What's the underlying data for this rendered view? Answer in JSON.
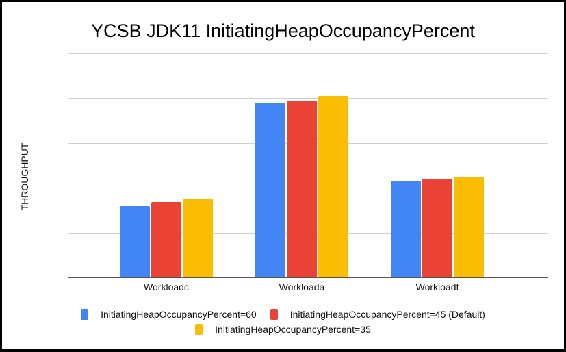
{
  "chart_data": {
    "type": "bar",
    "title": "YCSB JDK11 InitiatingHeapOccupancyPercent",
    "xlabel": "",
    "ylabel": "THROUGHPUT",
    "ylim": [
      0,
      5
    ],
    "y_tick_labels_visible": false,
    "grid": true,
    "gridlines": [
      1,
      2,
      3,
      4,
      5
    ],
    "legend_position": "bottom",
    "categories": [
      "Workloadc",
      "Workloada",
      "Workloadf"
    ],
    "series": [
      {
        "name": "InitiatingHeapOccupancyPercent=60",
        "color": "#4285F4",
        "values": [
          1.59,
          3.9,
          2.16
        ]
      },
      {
        "name": "InitiatingHeapOccupancyPercent=45 (Default)",
        "color": "#EA4335",
        "values": [
          1.68,
          3.94,
          2.2
        ]
      },
      {
        "name": "InitiatingHeapOccupancyPercent=35",
        "color": "#FBBC04",
        "values": [
          1.76,
          4.05,
          2.25
        ]
      }
    ]
  }
}
